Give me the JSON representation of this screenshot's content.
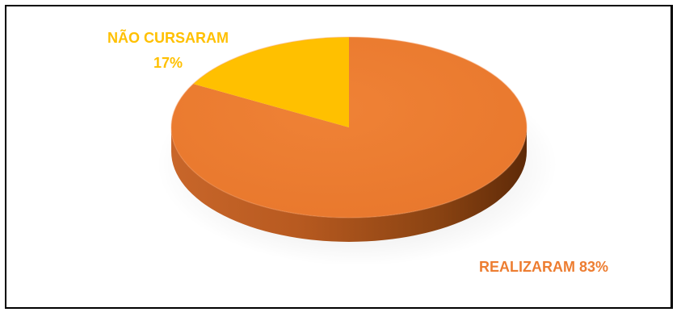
{
  "colors": {
    "realizaram": "#ED7D31",
    "realizaram_shade": "#9E4A14",
    "realizaram_dark": "#5E2A08",
    "nao_cursaram": "#FFC000",
    "frame": "#000000"
  },
  "chart_data": {
    "type": "pie",
    "style": "3d",
    "categories": [
      "REALIZARAM",
      "NÃO CURSARAM"
    ],
    "values": [
      83,
      17
    ],
    "slice_labels": [
      {
        "name": "REALIZARAM",
        "percent": "83%"
      },
      {
        "name": "NÃO CURSARAM",
        "percent": "17%"
      }
    ],
    "legend": "none"
  }
}
